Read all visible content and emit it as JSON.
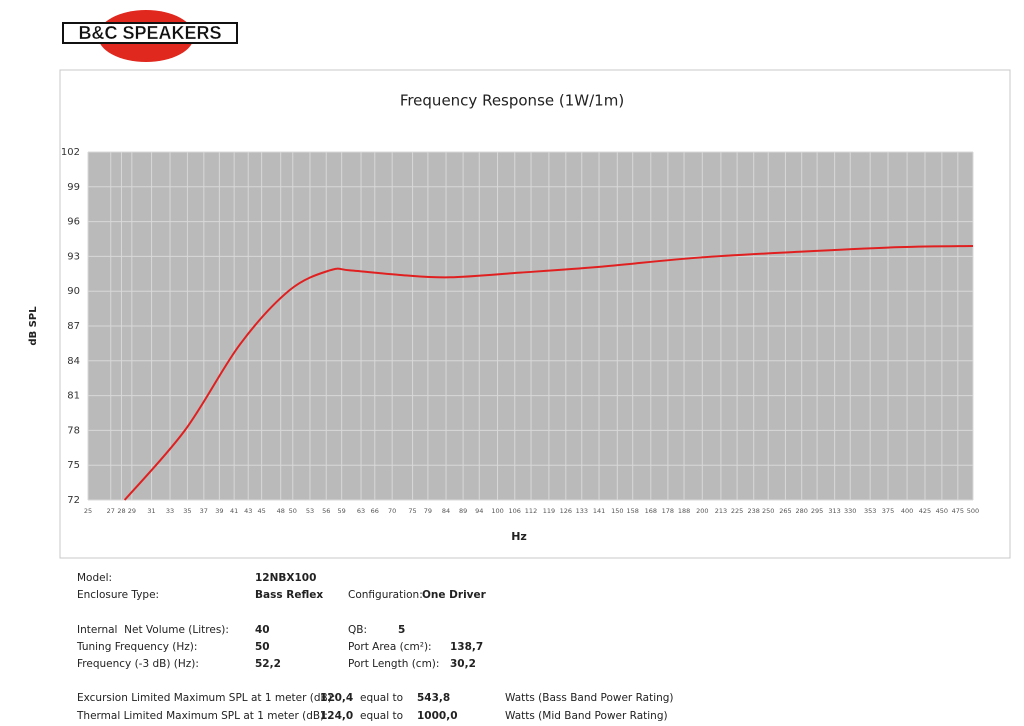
{
  "logo": "B&C SPEAKERS",
  "chart_data": {
    "type": "line",
    "title": "Frequency Response (1W/1m)",
    "x_label": "Hz",
    "y_label": "dB SPL",
    "log_x": true,
    "grid": true,
    "x": [
      28.3,
      34.7,
      41.8,
      49.5,
      56.7,
      60.7,
      71.9,
      85.1,
      107.9,
      141,
      198,
      278,
      390,
      500
    ],
    "series": [
      {
        "name": "12NBX100",
        "color": "#e02020",
        "values": [
          72,
          78,
          85.4,
          90.1,
          91.8,
          91.8,
          91.4,
          91.2,
          91.6,
          92.1,
          92.9,
          93.4,
          93.8,
          93.9
        ]
      }
    ],
    "xlim": [
      25,
      500
    ],
    "xticks": [
      25,
      27,
      28,
      29,
      31,
      33,
      35,
      37,
      39,
      41,
      43,
      45,
      48,
      50,
      53,
      56,
      59,
      63,
      66,
      70,
      75,
      79,
      84,
      89,
      94,
      100,
      106,
      112,
      119,
      126,
      133,
      141,
      150,
      158,
      168,
      178,
      188,
      200,
      213,
      225,
      238,
      250,
      265,
      280,
      295,
      313,
      330,
      353,
      375,
      400,
      425,
      450,
      475,
      500
    ],
    "ylim": [
      72,
      102
    ],
    "yticks": [
      72,
      75,
      78,
      81,
      84,
      87,
      90,
      93,
      96,
      99,
      102
    ]
  },
  "specs": {
    "model_label": "Model:",
    "model": "12NBX100",
    "enclosure_label": "Enclosure Type:",
    "enclosure": "Bass Reflex",
    "configuration_label": "Configuration:",
    "configuration": "One Driver",
    "volume_label": "Internal  Net Volume (Litres):",
    "volume": "40",
    "qb_label": "QB:",
    "qb": "5",
    "tuning_label": "Tuning Frequency (Hz):",
    "tuning": "50",
    "port_area_label": "Port Area (cm²):",
    "port_area": "138,7",
    "f3_label": "Frequency (-3 dB) (Hz):",
    "f3": "52,2",
    "port_length_label": "Port Length (cm):",
    "port_length": "30,2",
    "excursion": {
      "label": "Excursion Limited Maximum SPL at 1 meter (dB):",
      "spl": "120,4",
      "equal": "equal to",
      "watts": "543,8",
      "rating": "Watts (Bass Band Power Rating)"
    },
    "thermal": {
      "label": "Thermal Limited Maximum SPL at 1 meter (dB):",
      "spl": "124,0",
      "equal": "equal to",
      "watts": "1000,0",
      "rating": "Watts (Mid Band Power Rating)"
    }
  }
}
